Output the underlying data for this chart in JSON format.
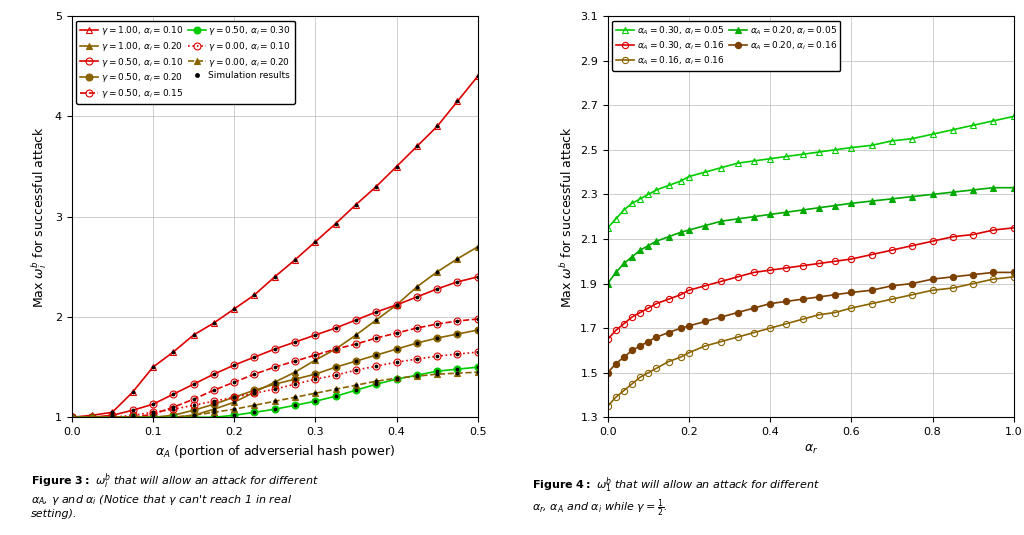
{
  "fig1": {
    "xlabel": "$\\alpha_A$ (portion of adverserial hash power)",
    "ylabel": "Max $\\omega_i^b$ for successful attack",
    "xlim": [
      0.0,
      0.5
    ],
    "ylim": [
      1.0,
      5.0
    ],
    "xticks": [
      0.0,
      0.1,
      0.2,
      0.3,
      0.4,
      0.5
    ],
    "yticks": [
      1,
      2,
      3,
      4,
      5
    ],
    "aA_pts": [
      0.0,
      0.025,
      0.05,
      0.075,
      0.1,
      0.125,
      0.15,
      0.175,
      0.2,
      0.225,
      0.25,
      0.275,
      0.3,
      0.325,
      0.35,
      0.375,
      0.4,
      0.425,
      0.45,
      0.475,
      0.5
    ],
    "series": [
      {
        "label": "$\\gamma = 1.00$, $\\alpha_i = 0.10$",
        "color": "#DD0000",
        "marker": "^",
        "fillstyle": "none",
        "linestyle": "-",
        "omega": [
          1.0,
          1.02,
          1.05,
          1.25,
          1.5,
          1.65,
          1.82,
          1.94,
          2.08,
          2.22,
          2.4,
          2.57,
          2.75,
          2.93,
          3.12,
          3.3,
          3.5,
          3.7,
          3.9,
          4.15,
          4.4
        ]
      },
      {
        "label": "$\\gamma = 1.00$, $\\alpha_i = 0.20$",
        "color": "#8B6400",
        "marker": "^",
        "fillstyle": "full",
        "linestyle": "-",
        "omega": [
          1.0,
          1.0,
          1.0,
          1.0,
          1.0,
          1.0,
          1.02,
          1.08,
          1.15,
          1.25,
          1.35,
          1.45,
          1.57,
          1.68,
          1.82,
          1.97,
          2.12,
          2.3,
          2.45,
          2.58,
          2.7
        ]
      },
      {
        "label": "$\\gamma = 0.50$, $\\alpha_i = 0.10$",
        "color": "#DD0000",
        "marker": "o",
        "fillstyle": "none",
        "linestyle": "-",
        "omega": [
          1.0,
          1.0,
          1.02,
          1.07,
          1.13,
          1.23,
          1.33,
          1.43,
          1.52,
          1.6,
          1.68,
          1.75,
          1.82,
          1.89,
          1.97,
          2.05,
          2.12,
          2.2,
          2.28,
          2.35,
          2.4
        ]
      },
      {
        "label": "$\\gamma = 0.50$, $\\alpha_i = 0.20$",
        "color": "#8B6400",
        "marker": "o",
        "fillstyle": "full",
        "linestyle": "-",
        "omega": [
          1.0,
          1.0,
          1.0,
          1.0,
          1.0,
          1.02,
          1.07,
          1.13,
          1.2,
          1.27,
          1.33,
          1.38,
          1.43,
          1.5,
          1.56,
          1.62,
          1.68,
          1.74,
          1.79,
          1.83,
          1.87
        ]
      },
      {
        "label": "$\\gamma = 0.50$, $\\alpha_i = 0.15$",
        "color": "#DD0000",
        "marker": "o",
        "fillstyle": "none",
        "linestyle": "--",
        "omega": [
          1.0,
          1.0,
          1.0,
          1.0,
          1.03,
          1.1,
          1.18,
          1.27,
          1.35,
          1.43,
          1.5,
          1.56,
          1.62,
          1.68,
          1.73,
          1.79,
          1.84,
          1.89,
          1.93,
          1.96,
          1.98
        ]
      },
      {
        "label": "$\\gamma = 0.50$, $\\alpha_i = 0.30$",
        "color": "#00CC00",
        "marker": "o",
        "fillstyle": "full",
        "linestyle": "-",
        "omega": [
          1.0,
          1.0,
          1.0,
          1.0,
          1.0,
          1.0,
          1.0,
          1.0,
          1.02,
          1.05,
          1.08,
          1.12,
          1.16,
          1.21,
          1.27,
          1.33,
          1.38,
          1.42,
          1.46,
          1.48,
          1.5
        ]
      },
      {
        "label": "$\\gamma = 0.00$, $\\alpha_i = 0.10$",
        "color": "#DD0000",
        "marker": "o",
        "fillstyle": "none",
        "linestyle": ":",
        "omega": [
          1.0,
          1.0,
          1.0,
          1.02,
          1.05,
          1.08,
          1.12,
          1.16,
          1.2,
          1.24,
          1.28,
          1.33,
          1.38,
          1.42,
          1.47,
          1.51,
          1.55,
          1.58,
          1.61,
          1.63,
          1.65
        ]
      },
      {
        "label": "$\\gamma = 0.00$, $\\alpha_i = 0.20$",
        "color": "#8B6400",
        "marker": "^",
        "fillstyle": "full",
        "linestyle": "--",
        "omega": [
          1.0,
          1.0,
          1.0,
          1.0,
          1.0,
          1.0,
          1.02,
          1.05,
          1.08,
          1.12,
          1.16,
          1.2,
          1.24,
          1.28,
          1.32,
          1.36,
          1.39,
          1.41,
          1.43,
          1.44,
          1.45
        ]
      }
    ],
    "sim_x": [
      0.05,
      0.1,
      0.15,
      0.2,
      0.25,
      0.3,
      0.35,
      0.4,
      0.45,
      0.5
    ],
    "sim_y_g1_ai10": [
      1.05,
      1.5,
      1.82,
      2.08,
      2.4,
      2.75,
      3.12,
      3.5,
      3.9,
      4.4
    ],
    "sim_y_g05_ai10": [
      1.02,
      1.13,
      1.33,
      1.52,
      1.68,
      1.82,
      1.97,
      2.12,
      2.28,
      2.4
    ],
    "sim_y_g0_ai10": [
      1.0,
      1.05,
      1.12,
      1.2,
      1.28,
      1.38,
      1.47,
      1.55,
      1.61,
      1.65
    ]
  },
  "fig2": {
    "xlabel": "$\\alpha_r$",
    "ylabel": "Max $\\omega^b$ for successful attack",
    "xlim": [
      0.0,
      1.0
    ],
    "ylim": [
      1.3,
      3.1
    ],
    "xticks": [
      0.0,
      0.2,
      0.4,
      0.6,
      0.8,
      1.0
    ],
    "yticks": [
      1.3,
      1.5,
      1.7,
      1.9,
      2.1,
      2.3,
      2.5,
      2.7,
      2.9,
      3.1
    ],
    "ar_pts": [
      0.0,
      0.02,
      0.04,
      0.06,
      0.08,
      0.1,
      0.12,
      0.15,
      0.18,
      0.2,
      0.24,
      0.28,
      0.32,
      0.36,
      0.4,
      0.44,
      0.48,
      0.52,
      0.56,
      0.6,
      0.65,
      0.7,
      0.75,
      0.8,
      0.85,
      0.9,
      0.95,
      1.0
    ],
    "series": [
      {
        "label": "$\\alpha_A = 0.30$, $\\alpha_i = 0.05$",
        "color": "#00CC00",
        "marker": "^",
        "fillstyle": "none",
        "omega": [
          2.15,
          2.19,
          2.23,
          2.26,
          2.28,
          2.3,
          2.32,
          2.34,
          2.36,
          2.38,
          2.4,
          2.42,
          2.44,
          2.45,
          2.46,
          2.47,
          2.48,
          2.49,
          2.5,
          2.51,
          2.52,
          2.54,
          2.55,
          2.57,
          2.59,
          2.61,
          2.63,
          2.65
        ]
      },
      {
        "label": "$\\alpha_A = 0.20$, $\\alpha_i = 0.05$",
        "color": "#00AA00",
        "marker": "^",
        "fillstyle": "full",
        "omega": [
          1.9,
          1.95,
          1.99,
          2.02,
          2.05,
          2.07,
          2.09,
          2.11,
          2.13,
          2.14,
          2.16,
          2.18,
          2.19,
          2.2,
          2.21,
          2.22,
          2.23,
          2.24,
          2.25,
          2.26,
          2.27,
          2.28,
          2.29,
          2.3,
          2.31,
          2.32,
          2.33,
          2.33
        ]
      },
      {
        "label": "$\\alpha_A = 0.30$, $\\alpha_i = 0.16$",
        "color": "#DD0000",
        "marker": "o",
        "fillstyle": "none",
        "omega": [
          1.65,
          1.69,
          1.72,
          1.75,
          1.77,
          1.79,
          1.81,
          1.83,
          1.85,
          1.87,
          1.89,
          1.91,
          1.93,
          1.95,
          1.96,
          1.97,
          1.98,
          1.99,
          2.0,
          2.01,
          2.03,
          2.05,
          2.07,
          2.09,
          2.11,
          2.12,
          2.14,
          2.15
        ]
      },
      {
        "label": "$\\alpha_A = 0.20$, $\\alpha_i = 0.16$",
        "color": "#7B3F00",
        "marker": "o",
        "fillstyle": "full",
        "omega": [
          1.5,
          1.54,
          1.57,
          1.6,
          1.62,
          1.64,
          1.66,
          1.68,
          1.7,
          1.71,
          1.73,
          1.75,
          1.77,
          1.79,
          1.81,
          1.82,
          1.83,
          1.84,
          1.85,
          1.86,
          1.87,
          1.89,
          1.9,
          1.92,
          1.93,
          1.94,
          1.95,
          1.95
        ]
      },
      {
        "label": "$\\alpha_A = 0.16$, $\\alpha_i = 0.16$",
        "color": "#8B6400",
        "marker": "o",
        "fillstyle": "none",
        "omega": [
          1.35,
          1.39,
          1.42,
          1.45,
          1.48,
          1.5,
          1.52,
          1.55,
          1.57,
          1.59,
          1.62,
          1.64,
          1.66,
          1.68,
          1.7,
          1.72,
          1.74,
          1.76,
          1.77,
          1.79,
          1.81,
          1.83,
          1.85,
          1.87,
          1.88,
          1.9,
          1.92,
          1.93
        ]
      }
    ]
  },
  "bg_color": "#FFFFFF",
  "grid_color": "#BBBBBB",
  "legend1_cols": 2,
  "markersize": 5,
  "linewidth": 1.2
}
